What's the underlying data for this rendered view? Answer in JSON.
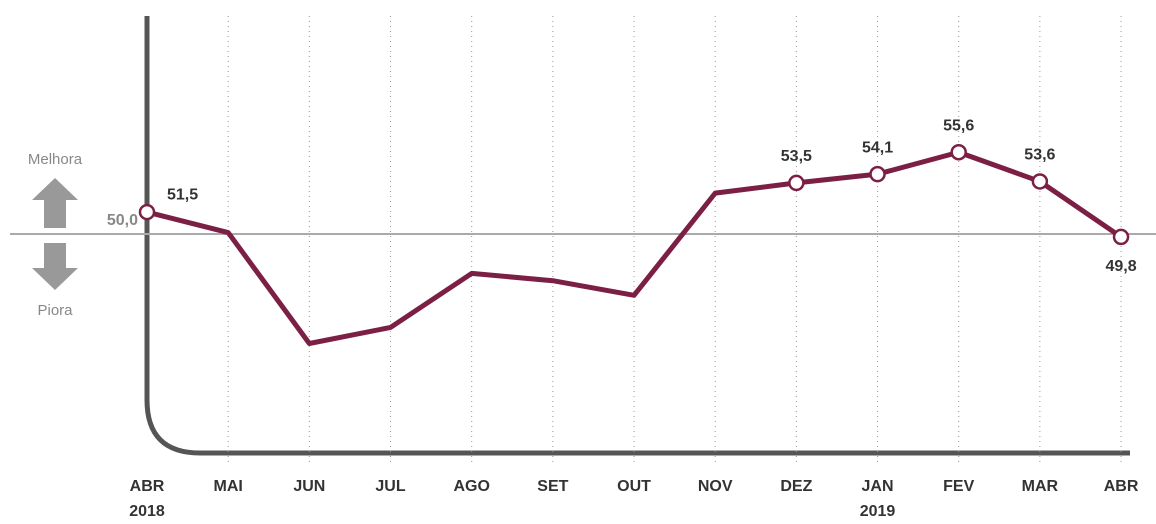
{
  "chart_data": {
    "type": "line",
    "categories": [
      "ABR",
      "MAI",
      "JUN",
      "JUL",
      "AGO",
      "SET",
      "OUT",
      "NOV",
      "DEZ",
      "JAN",
      "FEV",
      "MAR",
      "ABR"
    ],
    "category_years": [
      "2018",
      null,
      null,
      null,
      null,
      null,
      null,
      null,
      null,
      "2019",
      null,
      null,
      null
    ],
    "values": [
      51.5,
      50.1,
      42.5,
      43.6,
      47.3,
      46.8,
      45.8,
      52.8,
      53.5,
      54.1,
      55.6,
      53.6,
      49.8
    ],
    "value_labels": [
      "51,5",
      null,
      null,
      null,
      null,
      null,
      null,
      null,
      "53,5",
      "54,1",
      "55,6",
      "53,6",
      "49,8"
    ],
    "color": "#7b1f45",
    "ylim": [
      41,
      57
    ],
    "reference": {
      "value": 50,
      "label": "50,0"
    },
    "annotations": {
      "up": "Melhora",
      "down": "Piora"
    },
    "grid": true
  }
}
